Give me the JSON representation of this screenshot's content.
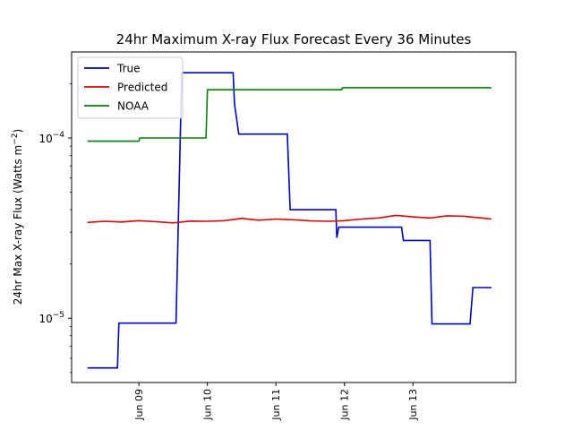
{
  "chart_data": {
    "type": "line",
    "title": "24hr Maximum X-ray Flux Forecast Every 36 Minutes",
    "ylabel": "24hr Max X-ray Flux (Watts m",
    "ylabel_sup": "−2",
    "ylabel_close": ")",
    "xlabel": "",
    "yscale": "log",
    "ylim": [
      4.4e-06,
      0.0003
    ],
    "xlim": [
      "2013-06-08T00:26",
      "2013-06-14T12:00"
    ],
    "x_ticks": [
      {
        "label": "Jun 09",
        "x": "2013-06-09T00:00"
      },
      {
        "label": "Jun 10",
        "x": "2013-06-10T00:00"
      },
      {
        "label": "Jun 11",
        "x": "2013-06-11T00:00"
      },
      {
        "label": "Jun 12",
        "x": "2013-06-12T00:00"
      },
      {
        "label": "Jun 13",
        "x": "2013-06-13T00:00"
      }
    ],
    "y_ticks": [
      {
        "label": "10",
        "sup": "−5",
        "value": 1e-05
      },
      {
        "label": "10",
        "sup": "−4",
        "value": 0.0001
      }
    ],
    "legend_position": "top-left",
    "grid": false,
    "series": [
      {
        "name": "True",
        "color": "#0000cc",
        "points": [
          [
            "2013-06-08T06:00",
            5.3e-06
          ],
          [
            "2013-06-08T16:30",
            5.3e-06
          ],
          [
            "2013-06-08T17:00",
            9.4e-06
          ],
          [
            "2013-06-09T13:00",
            9.4e-06
          ],
          [
            "2013-06-09T15:00",
            0.00023
          ],
          [
            "2013-06-10T09:00",
            0.00023
          ],
          [
            "2013-06-10T09:30",
            0.000155
          ],
          [
            "2013-06-10T11:00",
            0.000105
          ],
          [
            "2013-06-11T04:00",
            0.000105
          ],
          [
            "2013-06-11T05:00",
            4e-05
          ],
          [
            "2013-06-11T21:00",
            4e-05
          ],
          [
            "2013-06-11T21:20",
            2.8e-05
          ],
          [
            "2013-06-11T22:00",
            3.2e-05
          ],
          [
            "2013-06-12T20:00",
            3.2e-05
          ],
          [
            "2013-06-12T20:40",
            2.7e-05
          ],
          [
            "2013-06-13T06:00",
            2.7e-05
          ],
          [
            "2013-06-13T06:40",
            9.3e-06
          ],
          [
            "2013-06-13T20:00",
            9.3e-06
          ],
          [
            "2013-06-13T21:00",
            1.48e-05
          ],
          [
            "2013-06-14T03:30",
            1.48e-05
          ]
        ]
      },
      {
        "name": "Predicted",
        "color": "#dd0000",
        "points": [
          [
            "2013-06-08T06:00",
            3.4e-05
          ],
          [
            "2013-06-08T12:00",
            3.45e-05
          ],
          [
            "2013-06-08T18:00",
            3.42e-05
          ],
          [
            "2013-06-09T00:00",
            3.48e-05
          ],
          [
            "2013-06-09T06:00",
            3.43e-05
          ],
          [
            "2013-06-09T12:00",
            3.38e-05
          ],
          [
            "2013-06-09T18:00",
            3.46e-05
          ],
          [
            "2013-06-10T00:00",
            3.45e-05
          ],
          [
            "2013-06-10T06:00",
            3.48e-05
          ],
          [
            "2013-06-10T12:00",
            3.58e-05
          ],
          [
            "2013-06-10T18:00",
            3.5e-05
          ],
          [
            "2013-06-11T00:00",
            3.55e-05
          ],
          [
            "2013-06-11T06:00",
            3.52e-05
          ],
          [
            "2013-06-11T12:00",
            3.47e-05
          ],
          [
            "2013-06-11T18:00",
            3.45e-05
          ],
          [
            "2013-06-12T00:00",
            3.48e-05
          ],
          [
            "2013-06-12T06:00",
            3.55e-05
          ],
          [
            "2013-06-12T12:00",
            3.6e-05
          ],
          [
            "2013-06-12T18:00",
            3.72e-05
          ],
          [
            "2013-06-13T00:00",
            3.65e-05
          ],
          [
            "2013-06-13T06:00",
            3.6e-05
          ],
          [
            "2013-06-13T12:00",
            3.7e-05
          ],
          [
            "2013-06-13T18:00",
            3.68e-05
          ],
          [
            "2013-06-14T00:00",
            3.6e-05
          ],
          [
            "2013-06-14T03:30",
            3.55e-05
          ]
        ]
      },
      {
        "name": "NOAA",
        "color": "#008000",
        "points": [
          [
            "2013-06-08T06:00",
            9.6e-05
          ],
          [
            "2013-06-09T00:00",
            9.6e-05
          ],
          [
            "2013-06-09T00:20",
            0.0001
          ],
          [
            "2013-06-09T23:30",
            0.0001
          ],
          [
            "2013-06-10T00:00",
            0.000185
          ],
          [
            "2013-06-11T23:00",
            0.000185
          ],
          [
            "2013-06-11T23:20",
            0.00019
          ],
          [
            "2013-06-14T03:30",
            0.00019
          ]
        ]
      }
    ]
  }
}
